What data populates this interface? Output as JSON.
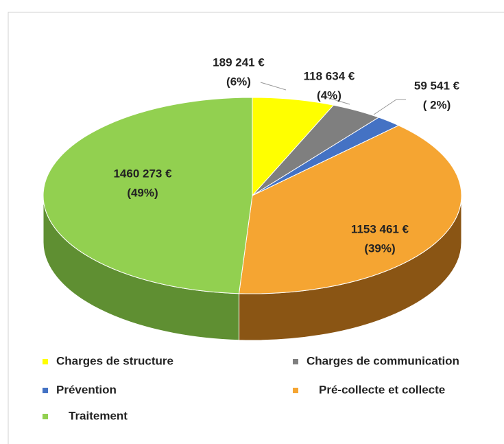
{
  "chart_data": {
    "type": "pie3d",
    "categories": [
      "Charges de structure",
      "Charges de communication",
      "Prévention",
      "Pré-collecte et collecte",
      "Traitement"
    ],
    "values": [
      189241,
      118634,
      59541,
      1153461,
      1460273
    ],
    "value_labels": [
      "189 241 €",
      "118 634 €",
      "59 541 €",
      "1153 461 €",
      "1460 273 €"
    ],
    "percentages": [
      6,
      4,
      2,
      39,
      49
    ],
    "percentage_labels": [
      "(6%)",
      "(4%)",
      "( 2%)",
      "(39%)",
      "(49%)"
    ],
    "colors": [
      "#ffff00",
      "#7f7f7f",
      "#4472c4",
      "#f5a532",
      "#92d050"
    ],
    "side_colors": [
      "#b3b300",
      "#555555",
      "#2f508a",
      "#8a5514",
      "#5f8f32"
    ],
    "legend": "bottom"
  }
}
